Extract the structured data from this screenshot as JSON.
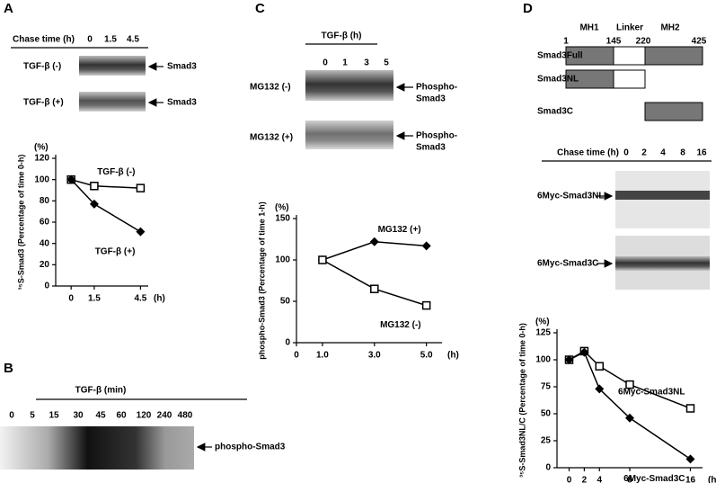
{
  "panel_letters": [
    "A",
    "B",
    "C",
    "D"
  ],
  "panel_a": {
    "chase_label": "Chase time (h)",
    "chase_times": [
      "0",
      "1.5",
      "4.5"
    ],
    "rows": [
      {
        "condition": "TGF-β (-)",
        "band": "Smad3"
      },
      {
        "condition": "TGF-β (+)",
        "band": "Smad3"
      }
    ]
  },
  "panel_b": {
    "header": "TGF-β (min)",
    "times": [
      "0",
      "5",
      "15",
      "30",
      "45",
      "60",
      "120",
      "240",
      "480"
    ],
    "band": "phospho-Smad3"
  },
  "panel_c": {
    "header": "TGF-β (h)",
    "times": [
      "0",
      "1",
      "3",
      "5"
    ],
    "rows": [
      {
        "condition": "MG132 (-)",
        "band": [
          "Phospho-",
          "Smad3"
        ]
      },
      {
        "condition": "MG132 (+)",
        "band": [
          "Phospho-",
          "Smad3"
        ]
      }
    ]
  },
  "panel_d": {
    "domains": [
      "MH1",
      "Linker",
      "MH2"
    ],
    "positions": [
      "1",
      "145",
      "220",
      "425"
    ],
    "constructs": [
      "Smad3Full",
      "Smad3NL",
      "Smad3C"
    ],
    "chase_label": "Chase time (h)",
    "chase_times": [
      "0",
      "2",
      "4",
      "8",
      "16"
    ],
    "rows": [
      "6Myc-Smad3NL",
      "6Myc-Smad3C"
    ]
  },
  "chart_data": [
    {
      "type": "line",
      "y_label": "³⁵S-Smad3 (Percentage of time 0-h)",
      "y_unit": "(%)",
      "x_unit": "(h)",
      "x": [
        0,
        1.5,
        4.5
      ],
      "xlim": [
        -1,
        5
      ],
      "xticks": [
        0,
        1.5,
        4.5
      ],
      "ylim": [
        0,
        120
      ],
      "yticks": [
        0,
        20,
        40,
        60,
        80,
        100,
        120
      ],
      "series": [
        {
          "name": "TGF-β (-)",
          "color": "#000000",
          "marker": "square",
          "values": [
            100,
            94,
            92
          ]
        },
        {
          "name": "TGF-β (+)",
          "color": "#000000",
          "marker": "diamond",
          "values": [
            100,
            77,
            51
          ]
        }
      ]
    },
    {
      "type": "line",
      "y_label": "phospho-Smad3 (Percentage of time 1-h)",
      "y_unit": "(%)",
      "x_unit": "(h)",
      "x": [
        1,
        3,
        5
      ],
      "xlim": [
        0,
        5.6
      ],
      "xticks": [
        0,
        {
          "value": 1,
          "label": "1.0"
        },
        {
          "value": 3,
          "label": "3.0"
        },
        {
          "value": 5,
          "label": "5.0"
        }
      ],
      "ylim": [
        0,
        150
      ],
      "yticks": [
        0,
        50,
        100,
        150
      ],
      "series": [
        {
          "name": "MG132 (+)",
          "color": "#000000",
          "marker": "diamond",
          "values": [
            100,
            122,
            117
          ]
        },
        {
          "name": "MG132 (-)",
          "color": "#000000",
          "marker": "square",
          "values": [
            100,
            65,
            45
          ]
        }
      ]
    },
    {
      "type": "line",
      "y_label": "³⁵S-Smad3NL/C (Percentage of time 0-h)",
      "y_unit": "(%)",
      "x_unit": "(h)",
      "x": [
        0,
        2,
        4,
        8,
        16
      ],
      "xlim": [
        -1.6,
        17.6
      ],
      "xticks": [
        0,
        2,
        4,
        8,
        16
      ],
      "ylim": [
        0,
        125
      ],
      "yticks": [
        0,
        25,
        50,
        75,
        100,
        125
      ],
      "series": [
        {
          "name": "6Myc-Smad3NL",
          "color": "#000000",
          "marker": "square",
          "values": [
            100,
            108,
            94,
            77,
            55
          ]
        },
        {
          "name": "6Myc-Smad3C",
          "color": "#000000",
          "marker": "diamond",
          "values": [
            100,
            107,
            73,
            46,
            8
          ]
        }
      ]
    }
  ]
}
